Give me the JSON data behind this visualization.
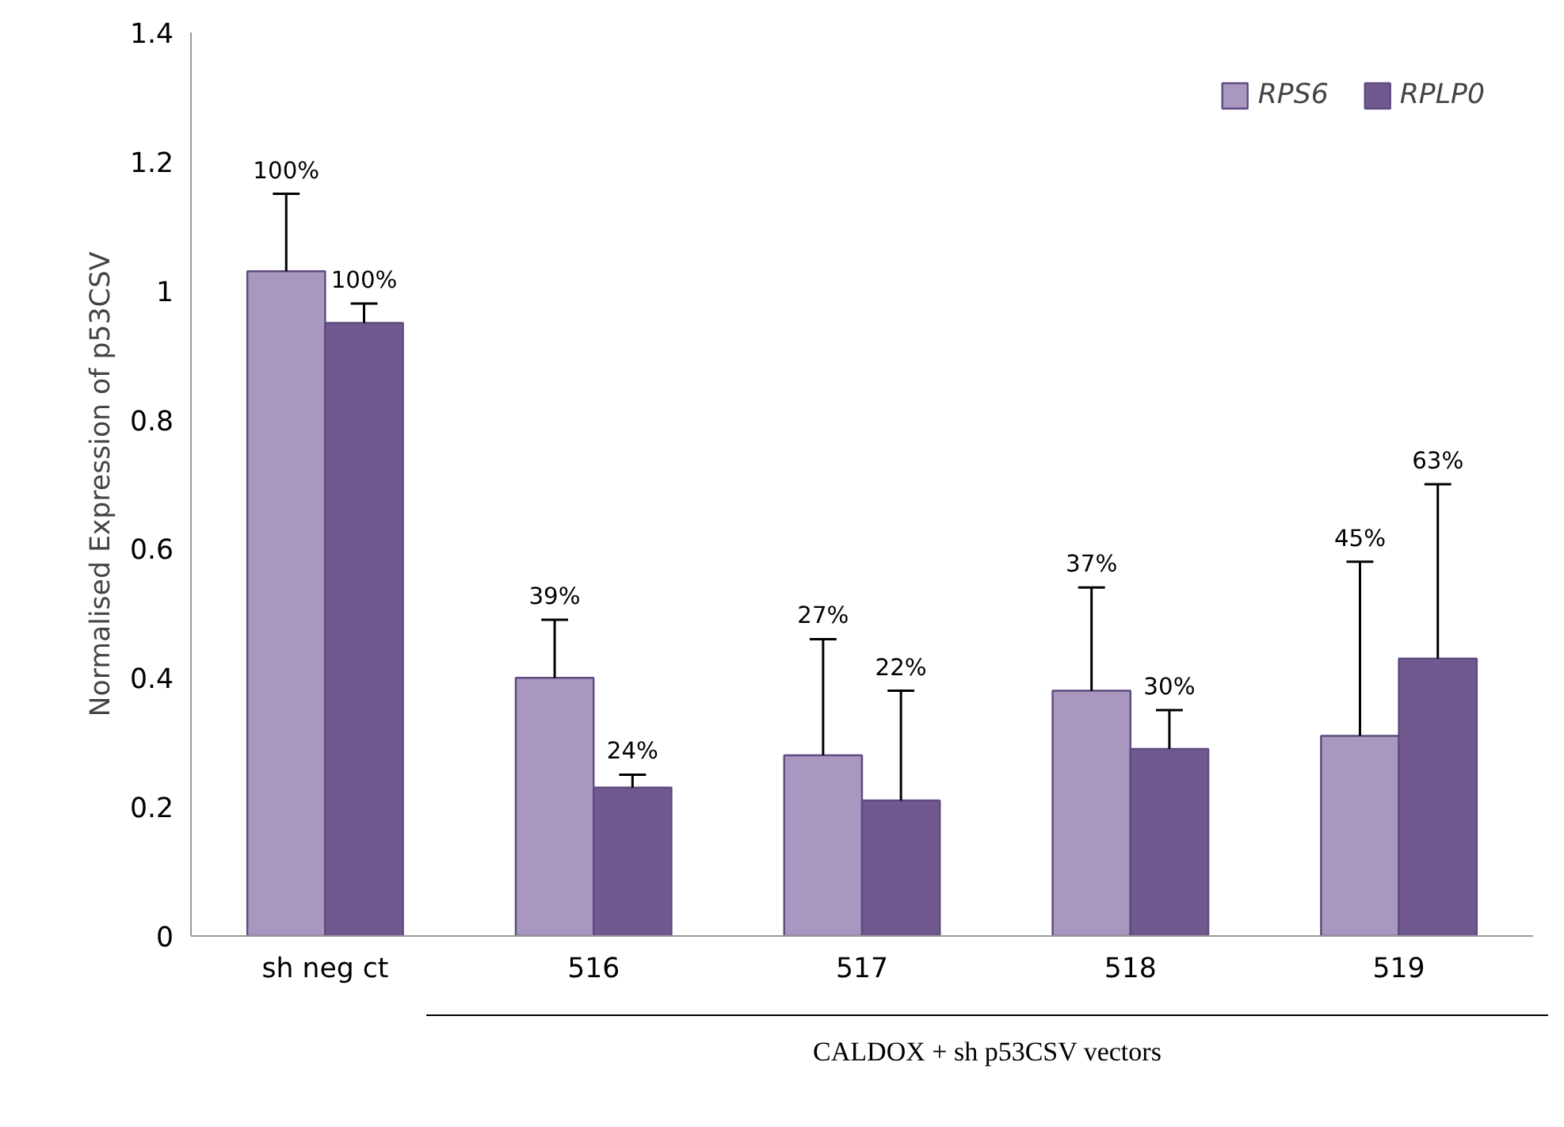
{
  "chart_data": {
    "type": "bar",
    "ylabel": "Normalised Expression of p53CSV",
    "xlabel": "CALDOX + sh p53CSV vectors",
    "categories": [
      "sh neg ct",
      "516",
      "517",
      "518",
      "519"
    ],
    "ylim": [
      0,
      1.4
    ],
    "yticks": [
      0,
      0.2,
      0.4,
      0.6,
      0.8,
      1,
      1.2,
      1.4
    ],
    "grid": false,
    "legend": "top right",
    "series": [
      {
        "name": "RPS6",
        "color": "#a898bf",
        "values": [
          1.03,
          0.4,
          0.28,
          0.38,
          0.31
        ],
        "errors": [
          [
            1.03,
            1.15
          ],
          [
            0.4,
            0.49
          ],
          [
            0.28,
            0.46
          ],
          [
            0.38,
            0.54
          ],
          [
            0.31,
            0.58
          ]
        ]
      },
      {
        "name": "RPLP0",
        "color": "#71598f",
        "values": [
          0.95,
          0.23,
          0.21,
          0.29,
          0.43
        ],
        "errors": [
          [
            0.95,
            0.98
          ],
          [
            0.23,
            0.25
          ],
          [
            0.21,
            0.38
          ],
          [
            0.29,
            0.35
          ],
          [
            0.43,
            0.7
          ]
        ]
      }
    ],
    "annotations": [
      "100%",
      "100%",
      "39%",
      "24%",
      "27%",
      "22%",
      "37%",
      "30%",
      "45%",
      "63%"
    ]
  }
}
